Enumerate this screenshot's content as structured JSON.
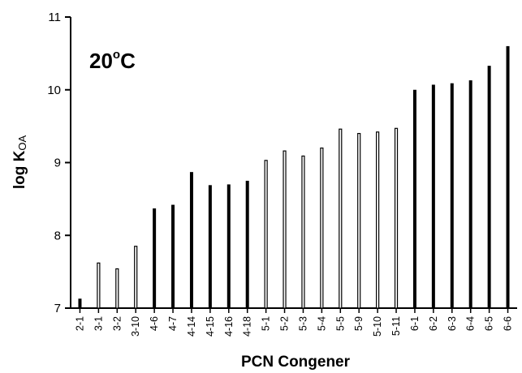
{
  "chart_data": {
    "type": "bar",
    "categories": [
      "2-1",
      "3-1",
      "3-2",
      "3-10",
      "4-6",
      "4-7",
      "4-14",
      "4-15",
      "4-16",
      "4-18",
      "5-1",
      "5-2",
      "5-3",
      "5-4",
      "5-5",
      "5-9",
      "5-10",
      "5-11",
      "6-1",
      "6-2",
      "6-3",
      "6-4",
      "6-5",
      "6-6"
    ],
    "values": [
      7.13,
      7.62,
      7.54,
      7.85,
      8.37,
      8.42,
      8.87,
      8.69,
      8.7,
      8.75,
      9.03,
      9.16,
      9.09,
      9.2,
      9.46,
      9.4,
      9.42,
      9.47,
      10.0,
      10.07,
      10.09,
      10.13,
      10.33,
      10.6
    ],
    "bar_fill": [
      "solid",
      "hollow",
      "hollow",
      "hollow",
      "solid",
      "solid",
      "solid",
      "solid",
      "solid",
      "solid",
      "hollow",
      "hollow",
      "hollow",
      "hollow",
      "hollow",
      "hollow",
      "hollow",
      "hollow",
      "solid",
      "solid",
      "solid",
      "solid",
      "solid",
      "solid"
    ],
    "xlabel": "PCN Congener",
    "ylabel_main": "log K",
    "ylabel_sub": "OA",
    "annotation_main": "20",
    "annotation_sup": "o",
    "annotation_unit": "C",
    "ylim": [
      7,
      11
    ],
    "yticks": [
      "7",
      "8",
      "9",
      "10",
      "11"
    ],
    "grid": false,
    "colors": {
      "bar": "#000000",
      "axis": "#000000",
      "background": "#ffffff"
    }
  }
}
